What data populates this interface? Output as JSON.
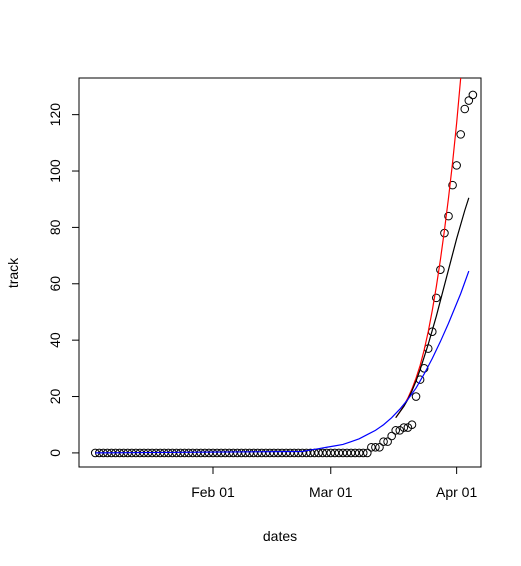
{
  "chart_data": {
    "type": "scatter",
    "title": "",
    "xlabel": "dates",
    "ylabel": "track",
    "x_start": "2020-01-03",
    "x_ticks": [
      {
        "label": "Feb 01",
        "date": "2020-02-01"
      },
      {
        "label": "Mar 01",
        "date": "2020-03-01"
      },
      {
        "label": "Apr 01",
        "date": "2020-04-01"
      }
    ],
    "y_ticks": [
      0,
      20,
      40,
      60,
      80,
      100,
      120
    ],
    "xlim": [
      "2019-12-30",
      "2020-04-07"
    ],
    "ylim": [
      -5,
      133
    ],
    "grid": false,
    "series": [
      {
        "kind": "points",
        "color": "#000000",
        "values": [
          0,
          0,
          0,
          0,
          0,
          0,
          0,
          0,
          0,
          0,
          0,
          0,
          0,
          0,
          0,
          0,
          0,
          0,
          0,
          0,
          0,
          0,
          0,
          0,
          0,
          0,
          0,
          0,
          0,
          0,
          0,
          0,
          0,
          0,
          0,
          0,
          0,
          0,
          0,
          0,
          0,
          0,
          0,
          0,
          0,
          0,
          0,
          0,
          0,
          0,
          0,
          0,
          0,
          0,
          0,
          0,
          0,
          0,
          0,
          0,
          0,
          0,
          0,
          0,
          0,
          0,
          0,
          0,
          2,
          2,
          2,
          4,
          4,
          6,
          8,
          8,
          9,
          9,
          10,
          20,
          26,
          30,
          37,
          43,
          55,
          65,
          78,
          84,
          95,
          102,
          113,
          122,
          125,
          127
        ]
      },
      {
        "kind": "line",
        "color": "#ff0000",
        "x": [
          "2020-03-17",
          "2020-03-18",
          "2020-03-19",
          "2020-03-20",
          "2020-03-21",
          "2020-03-22",
          "2020-03-23",
          "2020-03-24",
          "2020-03-25",
          "2020-03-26",
          "2020-03-27",
          "2020-03-28",
          "2020-03-29",
          "2020-03-30",
          "2020-03-31",
          "2020-04-01",
          "2020-04-02"
        ],
        "values": [
          12.5,
          14.5,
          16.8,
          19.5,
          22.7,
          26.5,
          31,
          36.5,
          43,
          50.5,
          59,
          68.5,
          79,
          90.5,
          103,
          117,
          133
        ]
      },
      {
        "kind": "line",
        "color": "#000000",
        "x": [
          "2020-03-17",
          "2020-03-18",
          "2020-03-19",
          "2020-03-20",
          "2020-03-21",
          "2020-03-22",
          "2020-03-23",
          "2020-03-24",
          "2020-03-25",
          "2020-03-26",
          "2020-03-27",
          "2020-03-28",
          "2020-03-29",
          "2020-03-30",
          "2020-03-31",
          "2020-04-01",
          "2020-04-02",
          "2020-04-03",
          "2020-04-04"
        ],
        "values": [
          12.5,
          14.5,
          16.5,
          19,
          22,
          25.5,
          29.5,
          34,
          38.5,
          43.5,
          48.5,
          54,
          59.5,
          65,
          70.5,
          76,
          81,
          86,
          90.5
        ]
      },
      {
        "kind": "line",
        "color": "#0000ff",
        "x": [
          "2020-01-03",
          "2020-02-23",
          "2020-02-25",
          "2020-02-27",
          "2020-02-29",
          "2020-03-02",
          "2020-03-04",
          "2020-03-06",
          "2020-03-08",
          "2020-03-10",
          "2020-03-12",
          "2020-03-14",
          "2020-03-16",
          "2020-03-18",
          "2020-03-20",
          "2020-03-22",
          "2020-03-24",
          "2020-03-26",
          "2020-03-28",
          "2020-03-30",
          "2020-04-01",
          "2020-04-02",
          "2020-04-03",
          "2020-04-04"
        ],
        "values": [
          0,
          0.5,
          1,
          1.5,
          2,
          2.5,
          3,
          4,
          5,
          6.5,
          8,
          10,
          12.5,
          15.5,
          19,
          23,
          28,
          33.5,
          39.5,
          46,
          53,
          56.5,
          60.5,
          64.5
        ]
      }
    ]
  }
}
